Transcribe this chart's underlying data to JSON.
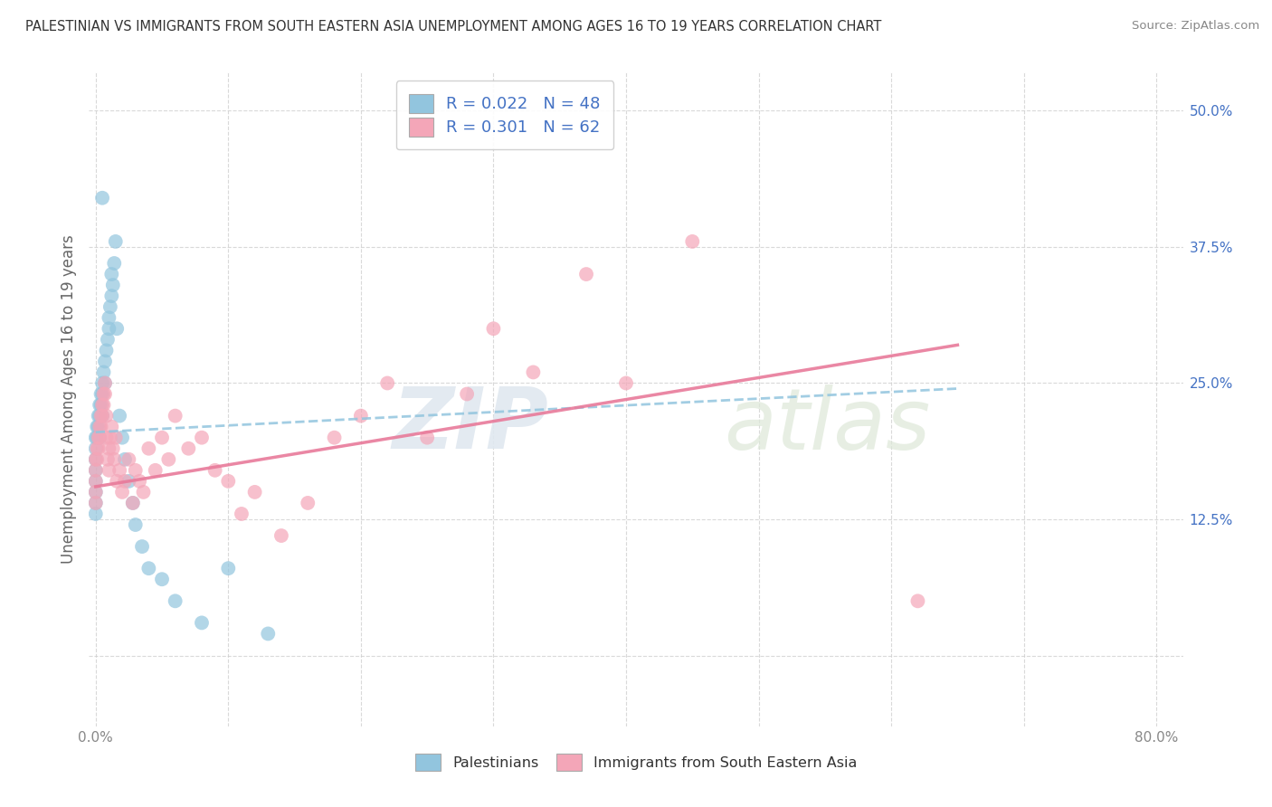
{
  "title": "PALESTINIAN VS IMMIGRANTS FROM SOUTH EASTERN ASIA UNEMPLOYMENT AMONG AGES 16 TO 19 YEARS CORRELATION CHART",
  "source": "Source: ZipAtlas.com",
  "ylabel_left": "Unemployment Among Ages 16 to 19 years",
  "blue_R": 0.022,
  "blue_N": 48,
  "pink_R": 0.301,
  "pink_N": 62,
  "blue_color": "#92c5de",
  "pink_color": "#f4a6b8",
  "watermark_zip": "ZIP",
  "watermark_atlas": "atlas",
  "legend_blue_label": "Palestinians",
  "legend_pink_label": "Immigrants from South Eastern Asia",
  "title_color": "#333333",
  "source_color": "#888888",
  "axis_label_color": "#666666",
  "tick_color_right": "#4472c4",
  "grid_color": "#d0d0d0",
  "background_color": "#ffffff",
  "xlim": [
    -0.005,
    0.82
  ],
  "ylim": [
    -0.065,
    0.535
  ],
  "blue_x": [
    0.0,
    0.0,
    0.0,
    0.0,
    0.0,
    0.0,
    0.0,
    0.0,
    0.001,
    0.001,
    0.002,
    0.002,
    0.003,
    0.003,
    0.003,
    0.004,
    0.004,
    0.005,
    0.005,
    0.005,
    0.006,
    0.007,
    0.007,
    0.008,
    0.009,
    0.01,
    0.01,
    0.011,
    0.012,
    0.012,
    0.013,
    0.014,
    0.015,
    0.016,
    0.018,
    0.02,
    0.022,
    0.025,
    0.028,
    0.03,
    0.035,
    0.04,
    0.05,
    0.06,
    0.08,
    0.1,
    0.13,
    0.005
  ],
  "blue_y": [
    0.2,
    0.19,
    0.18,
    0.17,
    0.16,
    0.15,
    0.14,
    0.13,
    0.21,
    0.2,
    0.22,
    0.21,
    0.23,
    0.22,
    0.2,
    0.24,
    0.23,
    0.25,
    0.24,
    0.22,
    0.26,
    0.27,
    0.25,
    0.28,
    0.29,
    0.3,
    0.31,
    0.32,
    0.33,
    0.35,
    0.34,
    0.36,
    0.38,
    0.3,
    0.22,
    0.2,
    0.18,
    0.16,
    0.14,
    0.12,
    0.1,
    0.08,
    0.07,
    0.05,
    0.03,
    0.08,
    0.02,
    0.42
  ],
  "pink_x": [
    0.0,
    0.0,
    0.0,
    0.0,
    0.0,
    0.001,
    0.001,
    0.002,
    0.002,
    0.003,
    0.003,
    0.004,
    0.004,
    0.005,
    0.005,
    0.006,
    0.006,
    0.007,
    0.007,
    0.008,
    0.008,
    0.009,
    0.01,
    0.01,
    0.011,
    0.012,
    0.013,
    0.014,
    0.015,
    0.016,
    0.018,
    0.02,
    0.022,
    0.025,
    0.028,
    0.03,
    0.033,
    0.036,
    0.04,
    0.045,
    0.05,
    0.055,
    0.06,
    0.07,
    0.08,
    0.09,
    0.1,
    0.11,
    0.12,
    0.14,
    0.16,
    0.18,
    0.2,
    0.22,
    0.25,
    0.28,
    0.3,
    0.33,
    0.37,
    0.4,
    0.45,
    0.62
  ],
  "pink_y": [
    0.18,
    0.17,
    0.16,
    0.15,
    0.14,
    0.19,
    0.18,
    0.2,
    0.19,
    0.21,
    0.2,
    0.22,
    0.21,
    0.23,
    0.22,
    0.24,
    0.23,
    0.25,
    0.24,
    0.22,
    0.2,
    0.18,
    0.19,
    0.17,
    0.2,
    0.21,
    0.19,
    0.18,
    0.2,
    0.16,
    0.17,
    0.15,
    0.16,
    0.18,
    0.14,
    0.17,
    0.16,
    0.15,
    0.19,
    0.17,
    0.2,
    0.18,
    0.22,
    0.19,
    0.2,
    0.17,
    0.16,
    0.13,
    0.15,
    0.11,
    0.14,
    0.2,
    0.22,
    0.25,
    0.2,
    0.24,
    0.3,
    0.26,
    0.35,
    0.25,
    0.38,
    0.05
  ],
  "blue_trend_x": [
    0.0,
    0.65
  ],
  "blue_trend_y": [
    0.205,
    0.245
  ],
  "pink_trend_x": [
    0.0,
    0.65
  ],
  "pink_trend_y": [
    0.155,
    0.285
  ]
}
